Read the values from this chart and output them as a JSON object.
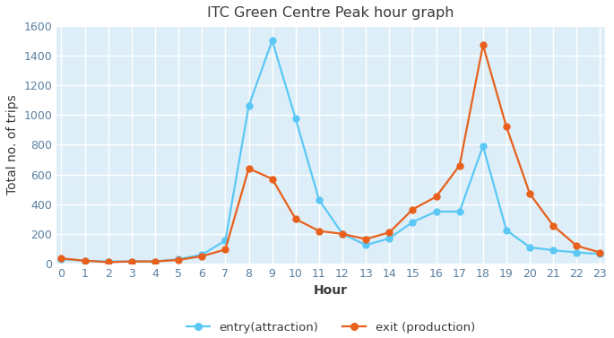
{
  "title": "ITC Green Centre Peak hour graph",
  "xlabel": "Hour",
  "ylabel": "Total no. of trips",
  "xlim": [
    0,
    23
  ],
  "ylim": [
    0,
    1600
  ],
  "yticks": [
    0,
    200,
    400,
    600,
    800,
    1000,
    1200,
    1400,
    1600
  ],
  "xticks": [
    0,
    1,
    2,
    3,
    4,
    5,
    6,
    7,
    8,
    9,
    10,
    11,
    12,
    13,
    14,
    15,
    16,
    17,
    18,
    19,
    20,
    21,
    22,
    23
  ],
  "entry": {
    "x": [
      0,
      1,
      2,
      3,
      4,
      5,
      6,
      7,
      8,
      9,
      10,
      11,
      12,
      13,
      14,
      15,
      16,
      17,
      18,
      19,
      20,
      21,
      22,
      23
    ],
    "y": [
      30,
      20,
      15,
      15,
      15,
      30,
      60,
      155,
      1060,
      1500,
      975,
      430,
      200,
      125,
      170,
      280,
      350,
      350,
      790,
      225,
      110,
      90,
      75,
      65
    ],
    "color": "#5bc8f5",
    "label": "entry(attraction)",
    "marker": "o"
  },
  "exit": {
    "x": [
      0,
      1,
      2,
      3,
      4,
      5,
      6,
      7,
      8,
      9,
      10,
      11,
      12,
      13,
      14,
      15,
      16,
      17,
      18,
      19,
      20,
      21,
      22,
      23
    ],
    "y": [
      35,
      20,
      10,
      15,
      15,
      25,
      50,
      95,
      640,
      570,
      300,
      220,
      200,
      165,
      210,
      365,
      450,
      660,
      1470,
      920,
      470,
      255,
      120,
      75
    ],
    "color": "#e8601c",
    "label": "exit (production)",
    "marker": "o"
  },
  "plot_bg_color": "#ddeef8",
  "fig_bg_color": "#ffffff",
  "grid_color": "#ffffff",
  "title_color": "#3a3a3a",
  "axis_label_color": "#3a3a3a",
  "tick_color": "#5a7fa0",
  "title_fontsize": 11.5,
  "axis_label_fontsize": 10,
  "tick_fontsize": 9,
  "legend_fontsize": 9.5,
  "line_width": 1.6,
  "marker_size": 5
}
